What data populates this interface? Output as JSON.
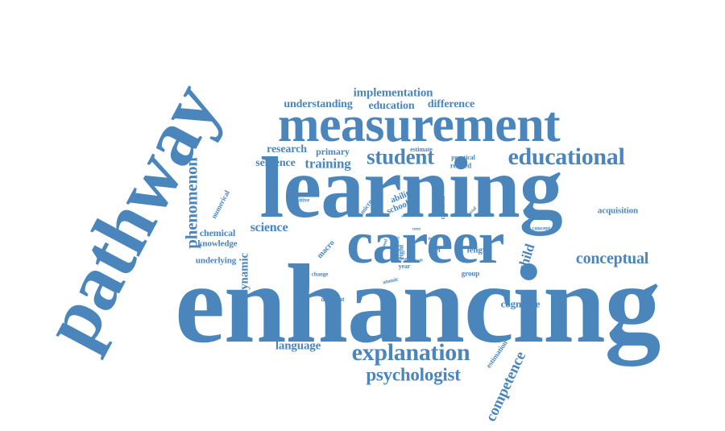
{
  "word_color": "#4a86bc",
  "words": {
    "enhancing": "enhancing",
    "learning": "learning",
    "pathway": "pathway",
    "measurement": "measurement",
    "career": "career",
    "educational": "educational",
    "explanation": "explanation",
    "psychologist": "psychologist",
    "student": "student",
    "conceptual": "conceptual",
    "phenomenon": "phenomenon",
    "competence": "competence",
    "implementation": "implementation",
    "understanding": "understanding",
    "education": "education",
    "difference": "difference",
    "research": "research",
    "primary": "primary",
    "sentence": "sentence",
    "training": "training",
    "science": "science",
    "chemical": "chemical",
    "knowledge": "knowledge",
    "underlying": "underlying",
    "dynamic": "dynamic",
    "language": "language",
    "cognitive": "cognitive",
    "acquisition": "acquisition",
    "child": "child",
    "length": "length",
    "numerical": "numerical",
    "ability": "ability",
    "school": "school",
    "macro": "macro",
    "micro": "micro",
    "estimation": "estimation",
    "estimate": "estimate",
    "practical": "practical",
    "related": "related",
    "common": "common",
    "social": "social",
    "concept": "concept",
    "positive": "positive",
    "change": "change",
    "different": "different",
    "atomic": "atomic",
    "group": "group",
    "level": "level",
    "eight": "eight",
    "year": "year",
    "good": "good",
    "study": "study",
    "term": "term",
    "time": "time",
    "fact": "fact",
    "issue": "issue",
    "result": "result",
    "state": "state"
  }
}
